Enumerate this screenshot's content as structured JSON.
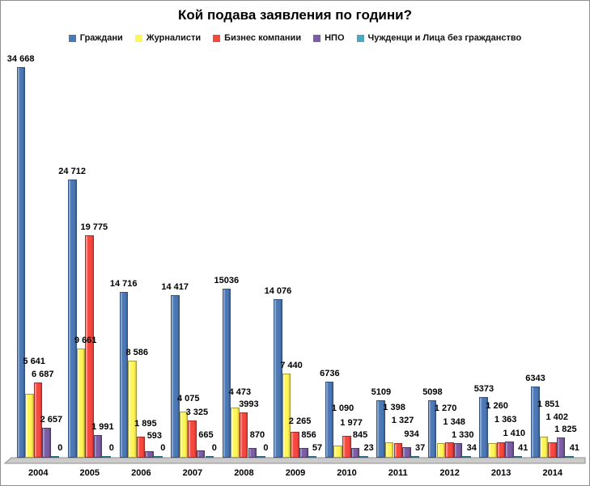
{
  "title": "Кой подава заявления по години?",
  "chart_data": {
    "type": "bar",
    "title": "Кой подава заявления по години?",
    "categories": [
      "2004",
      "2005",
      "2006",
      "2007",
      "2008",
      "2009",
      "2010",
      "2011",
      "2012",
      "2013",
      "2014"
    ],
    "series": [
      {
        "name": "Граждани",
        "color": "#4C78B5",
        "values": [
          34668,
          24712,
          14716,
          14417,
          15036,
          14076,
          6736,
          5109,
          5098,
          5373,
          6343
        ],
        "labels": [
          "34 668",
          "24 712",
          "14 716",
          "14 417",
          "15036",
          "14 076",
          "6736",
          "5109",
          "5098",
          "5373",
          "6343"
        ]
      },
      {
        "name": "Журналисти",
        "color": "#FEF557",
        "values": [
          5641,
          9661,
          8586,
          4075,
          4473,
          7440,
          1090,
          1398,
          1270,
          1260,
          1851
        ],
        "labels": [
          "5 641",
          "9 661",
          "8 586",
          "4 075",
          "4 473",
          "7 440",
          "1 090",
          "1 398",
          "1 270",
          "1 260",
          "1 851"
        ]
      },
      {
        "name": "Бизнес компании",
        "color": "#F74840",
        "values": [
          6687,
          19775,
          1895,
          3325,
          3993,
          2265,
          1977,
          1327,
          1348,
          1363,
          1402
        ],
        "labels": [
          "6 687",
          "19 775",
          "1 895",
          "3 325",
          "3993",
          "2 265",
          "1 977",
          "1 327",
          "1 348",
          "1 363",
          "1 402"
        ]
      },
      {
        "name": "НПО",
        "color": "#7B5EA4",
        "values": [
          2657,
          1991,
          593,
          665,
          870,
          856,
          845,
          934,
          1330,
          1410,
          1825
        ],
        "labels": [
          "2 657",
          "1 991",
          "593",
          "665",
          "870",
          "856",
          "845",
          "934",
          "1 330",
          "1 410",
          "1 825"
        ]
      },
      {
        "name": "Чужденци и Лица без гражданство",
        "color": "#48A9C8",
        "values": [
          0,
          0,
          0,
          0,
          0,
          57,
          23,
          37,
          34,
          41,
          41
        ],
        "labels": [
          "0",
          "0",
          "0",
          "0",
          "0",
          "57",
          "23",
          "37",
          "34",
          "41",
          "41"
        ]
      }
    ],
    "ylim": [
      0,
      36000
    ],
    "grid": false,
    "y_axis_visible": false,
    "legend_position": "top",
    "value_labels": "outside-end",
    "floor_color": "#CBCBCB"
  }
}
